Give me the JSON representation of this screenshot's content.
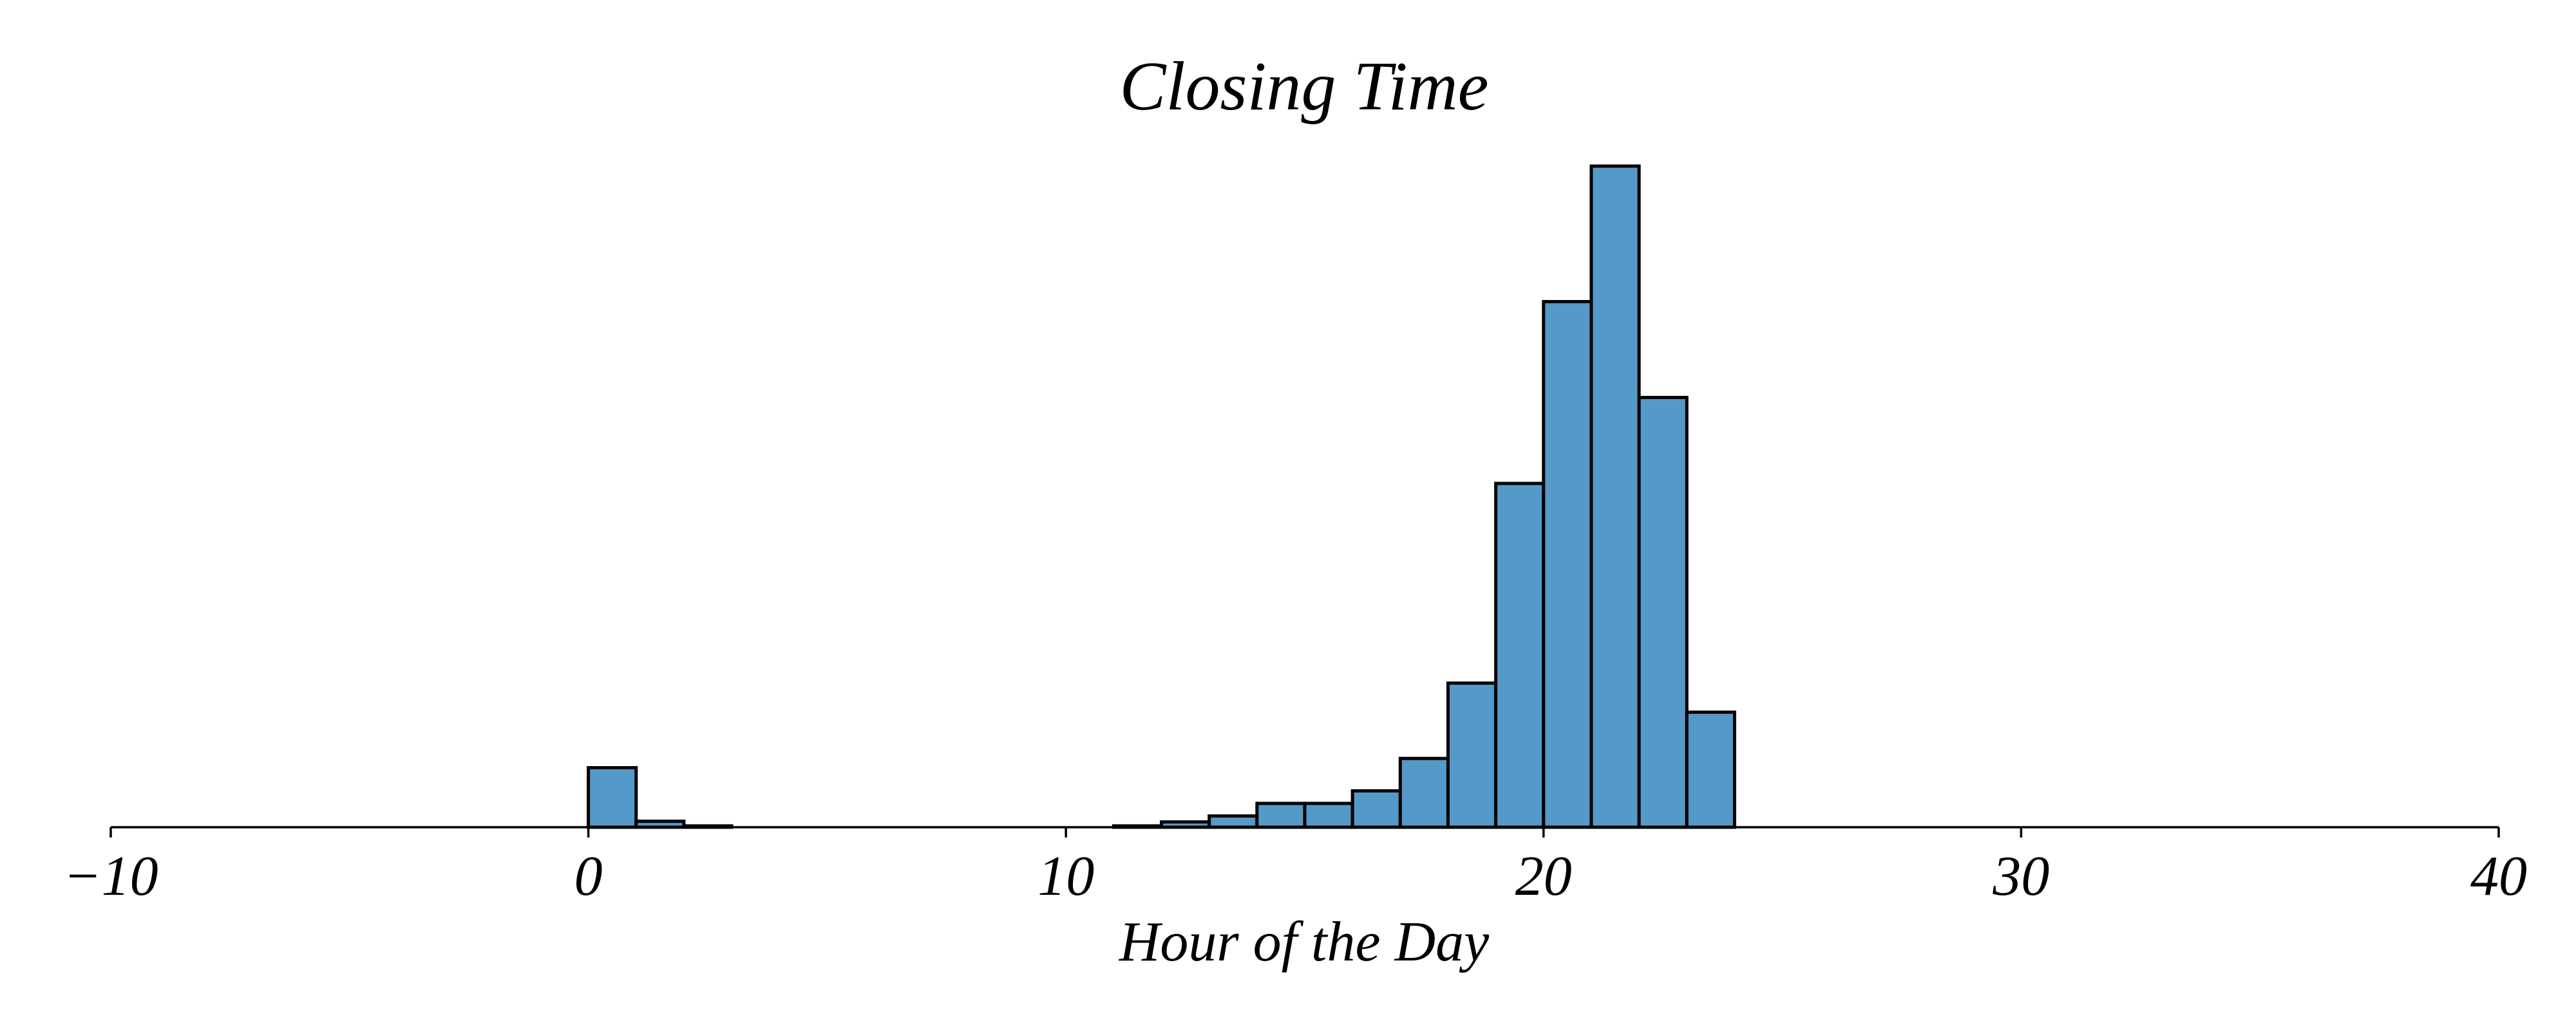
{
  "chart_data": {
    "type": "bar",
    "title": "Closing Time",
    "xlabel": "Hour of the Day",
    "ylabel": "",
    "xlim": [
      -10,
      40
    ],
    "x_ticks": [
      "−10",
      "0",
      "10",
      "20",
      "30",
      "40"
    ],
    "x_tick_values": [
      -10,
      0,
      10,
      20,
      30,
      40
    ],
    "y_axis_visible": false,
    "grid": false,
    "bar_color": "#5599c8",
    "edge_color": "#000000",
    "bins": [
      {
        "start": 0,
        "end": 1,
        "count": 0.09
      },
      {
        "start": 1,
        "end": 2,
        "count": 0.009
      },
      {
        "start": 2,
        "end": 3,
        "count": 0.002
      },
      {
        "start": 11,
        "end": 12,
        "count": 0.002
      },
      {
        "start": 12,
        "end": 13,
        "count": 0.008
      },
      {
        "start": 13,
        "end": 14,
        "count": 0.017
      },
      {
        "start": 14,
        "end": 15,
        "count": 0.036
      },
      {
        "start": 15,
        "end": 16,
        "count": 0.036
      },
      {
        "start": 16,
        "end": 17,
        "count": 0.055
      },
      {
        "start": 17,
        "end": 18,
        "count": 0.104
      },
      {
        "start": 18,
        "end": 19,
        "count": 0.218
      },
      {
        "start": 19,
        "end": 20,
        "count": 0.52
      },
      {
        "start": 20,
        "end": 21,
        "count": 0.795
      },
      {
        "start": 21,
        "end": 22,
        "count": 1.0
      },
      {
        "start": 22,
        "end": 23,
        "count": 0.65
      },
      {
        "start": 23,
        "end": 24,
        "count": 0.174
      }
    ]
  }
}
